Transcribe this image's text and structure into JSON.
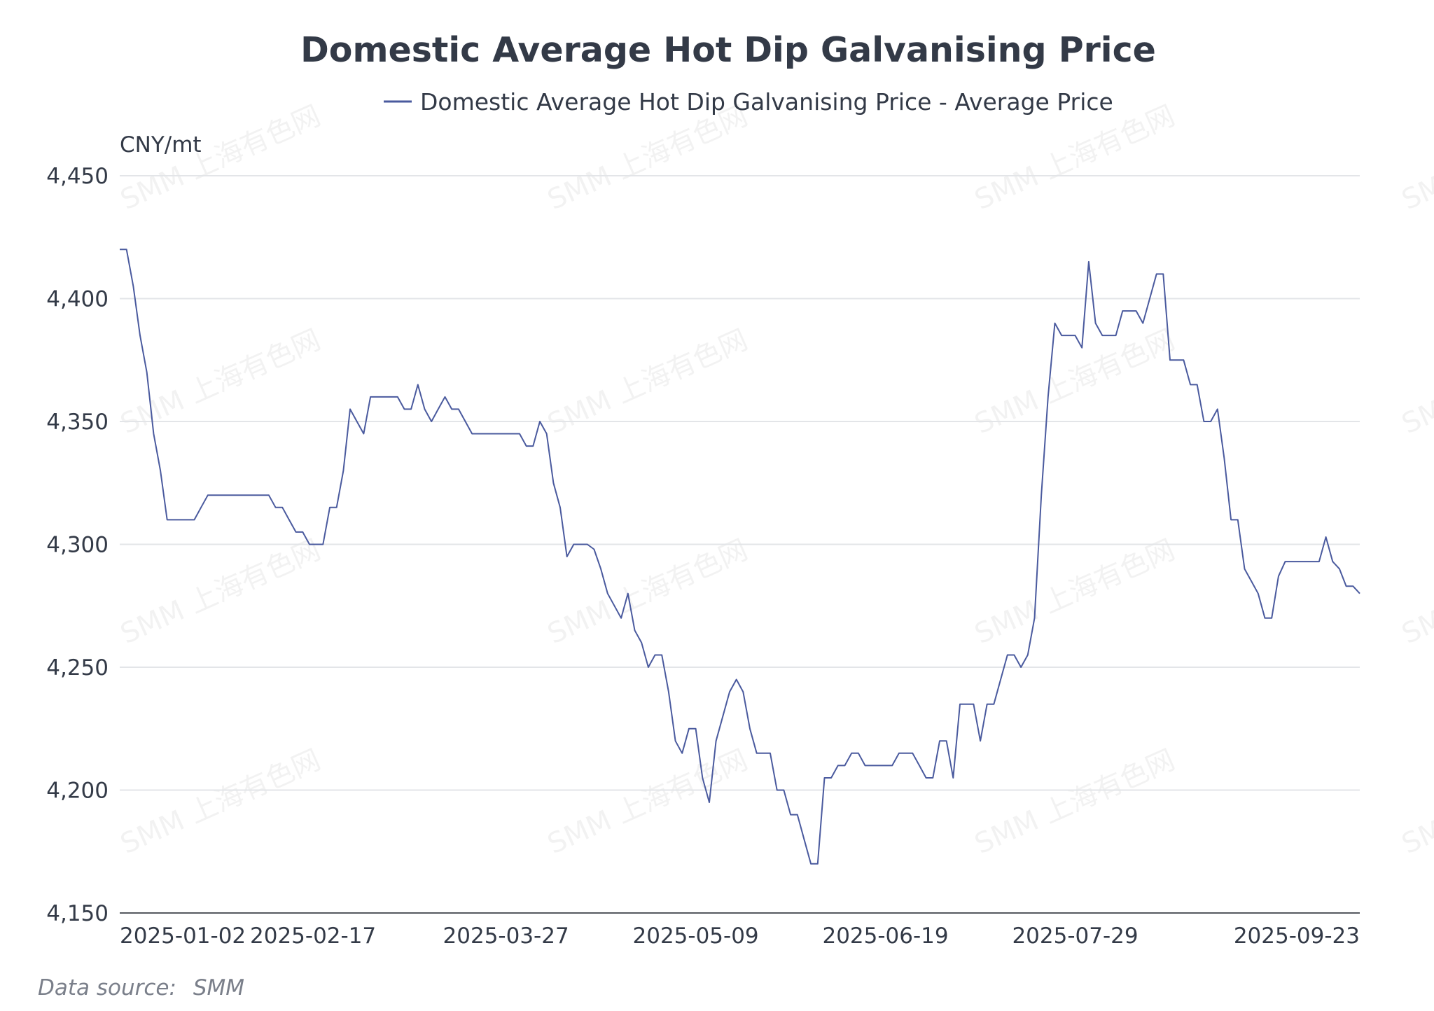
{
  "chart_data": {
    "type": "line",
    "title": "Domestic Average Hot Dip Galvanising Price",
    "ylabel": "CNY/mt",
    "ylim": [
      4150,
      4450
    ],
    "yticks": [
      "4,450",
      "4,400",
      "4,350",
      "4,300",
      "4,250",
      "4,200",
      "4,150"
    ],
    "yticks_values": [
      4450,
      4400,
      4350,
      4300,
      4250,
      4200,
      4150
    ],
    "xticks": [
      {
        "label": "2025-01-02",
        "index": 0
      },
      {
        "label": "2025-02-17",
        "index": 30
      },
      {
        "label": "2025-03-27",
        "index": 57
      },
      {
        "label": "2025-05-09",
        "index": 85
      },
      {
        "label": "2025-06-19",
        "index": 113
      },
      {
        "label": "2025-07-29",
        "index": 141
      },
      {
        "label": "2025-09-23",
        "index": 181
      }
    ],
    "grid": "horizontal",
    "legend_position": "top-center",
    "line_color": "#4a5a9e",
    "series": [
      {
        "name": "Domestic Average Hot Dip Galvanising Price - Average Price",
        "values": [
          4420,
          4420,
          4405,
          4385,
          4370,
          4345,
          4330,
          4310,
          4310,
          4310,
          4310,
          4310,
          4315,
          4320,
          4320,
          4320,
          4320,
          4320,
          4320,
          4320,
          4320,
          4320,
          4320,
          4315,
          4315,
          4310,
          4305,
          4305,
          4300,
          4300,
          4300,
          4315,
          4315,
          4330,
          4355,
          4350,
          4345,
          4360,
          4360,
          4360,
          4360,
          4360,
          4355,
          4355,
          4365,
          4355,
          4350,
          4355,
          4360,
          4355,
          4355,
          4350,
          4345,
          4345,
          4345,
          4345,
          4345,
          4345,
          4345,
          4345,
          4340,
          4340,
          4350,
          4345,
          4325,
          4315,
          4295,
          4300,
          4300,
          4300,
          4298,
          4290,
          4280,
          4275,
          4270,
          4280,
          4265,
          4260,
          4250,
          4255,
          4255,
          4240,
          4220,
          4215,
          4225,
          4225,
          4205,
          4195,
          4220,
          4230,
          4240,
          4245,
          4240,
          4225,
          4215,
          4215,
          4215,
          4200,
          4200,
          4190,
          4190,
          4180,
          4170,
          4170,
          4205,
          4205,
          4210,
          4210,
          4215,
          4215,
          4210,
          4210,
          4210,
          4210,
          4210,
          4215,
          4215,
          4215,
          4210,
          4205,
          4205,
          4220,
          4220,
          4205,
          4235,
          4235,
          4235,
          4220,
          4235,
          4235,
          4245,
          4255,
          4255,
          4250,
          4255,
          4270,
          4320,
          4360,
          4390,
          4385,
          4385,
          4385,
          4380,
          4415,
          4390,
          4385,
          4385,
          4385,
          4395,
          4395,
          4395,
          4390,
          4400,
          4410,
          4410,
          4375,
          4375,
          4375,
          4365,
          4365,
          4350,
          4350,
          4355,
          4335,
          4310,
          4310,
          4290,
          4285,
          4280,
          4270,
          4270,
          4287,
          4293,
          4293,
          4293,
          4293,
          4293,
          4293,
          4303,
          4293,
          4290,
          4283,
          4283,
          4280
        ]
      }
    ]
  },
  "footer": {
    "source_label": "Data source:",
    "source_value": "SMM"
  },
  "watermark": "SMM 上海有色网"
}
